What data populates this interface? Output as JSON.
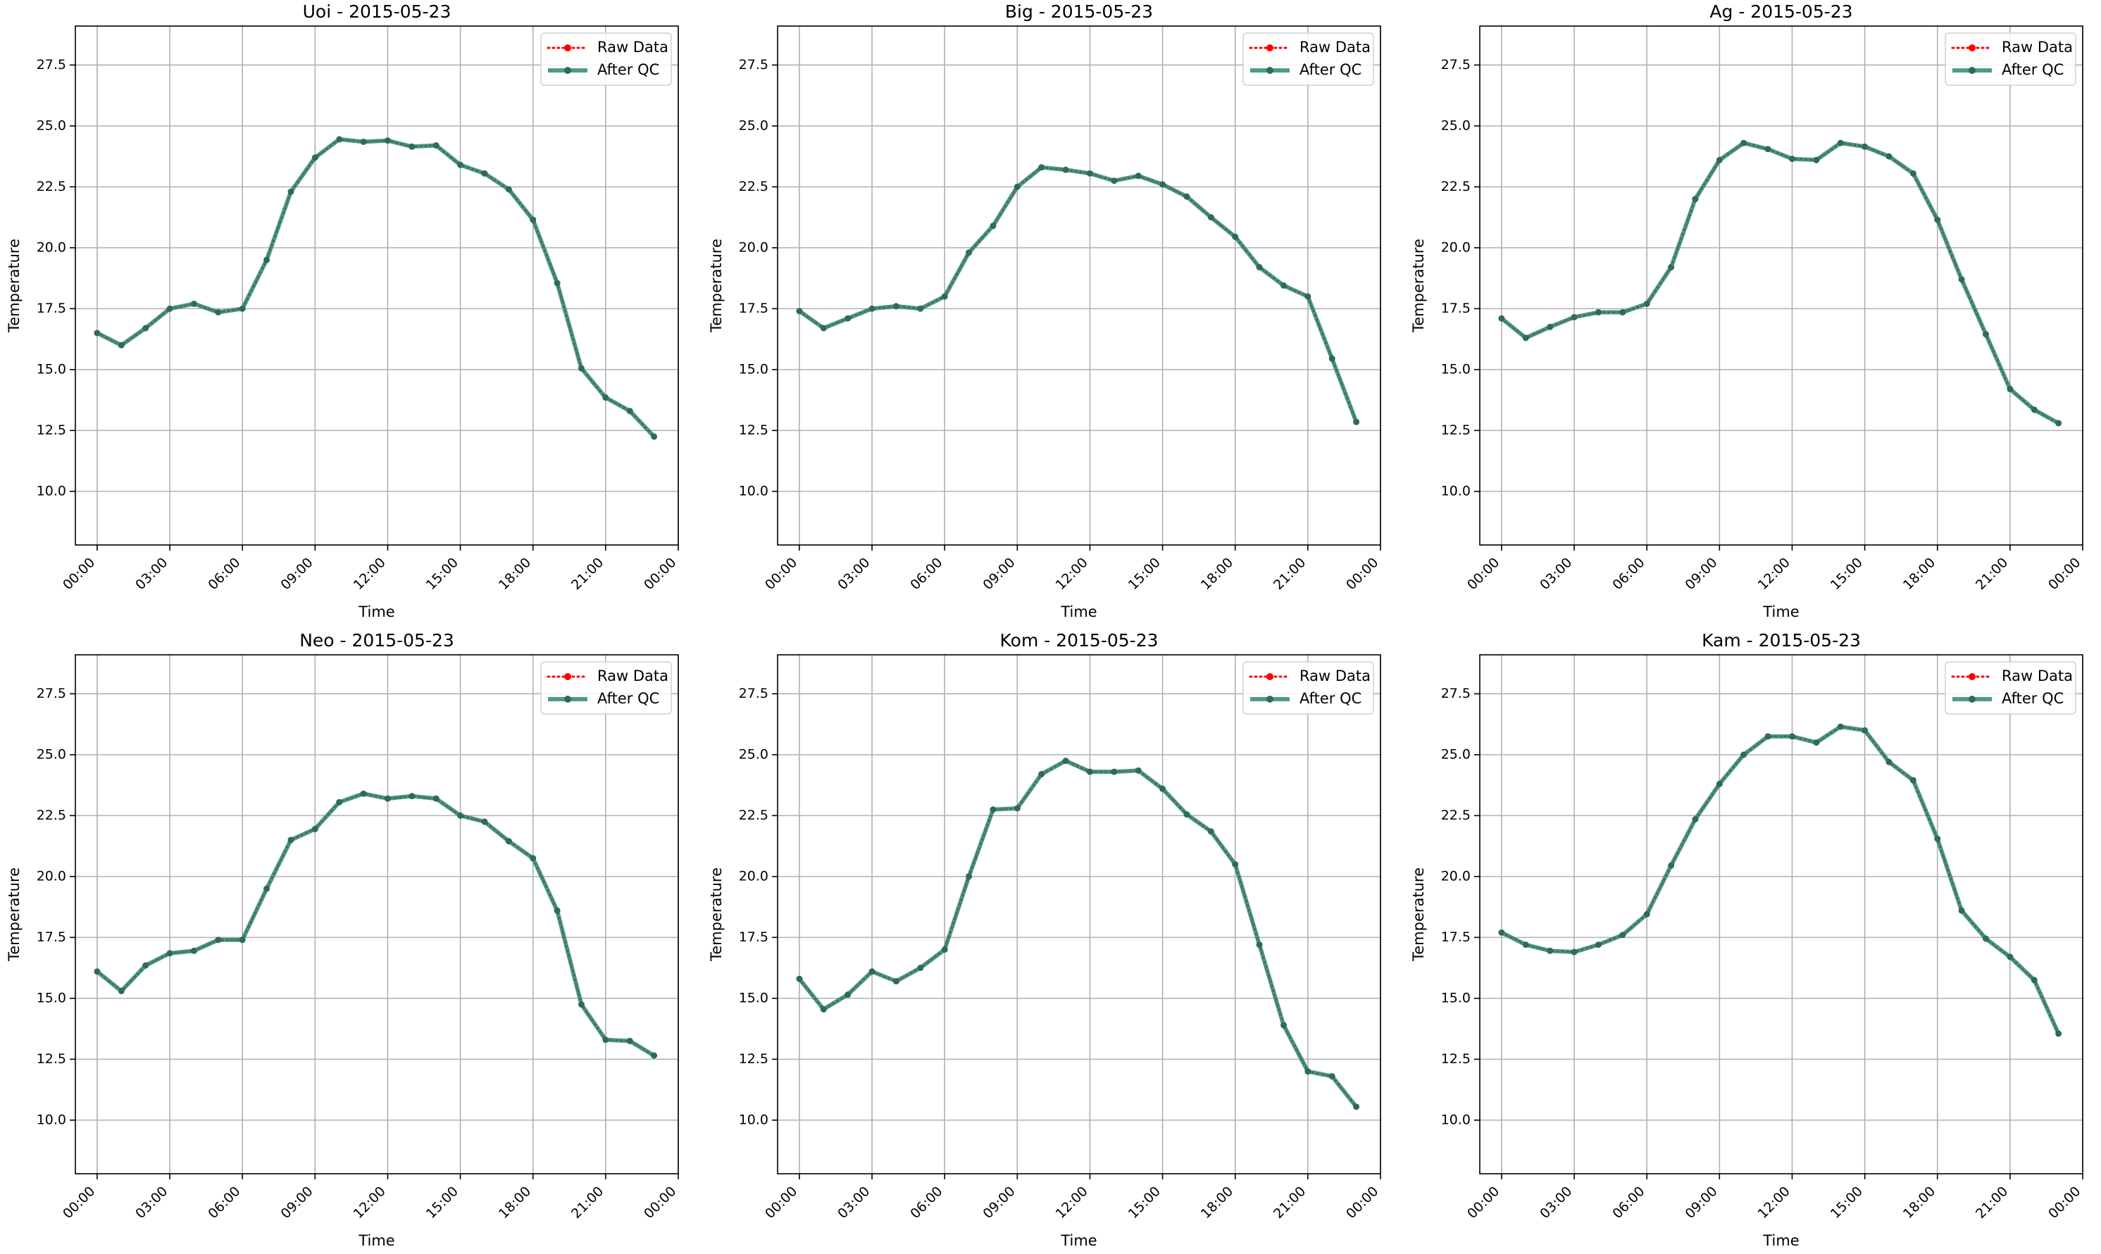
{
  "colors": {
    "raw": "#ff0000",
    "qc": "#2e8b6e",
    "grid": "#b0b0b0",
    "axes": "#000000"
  },
  "chart_data": [
    {
      "type": "line",
      "title": "Uoi - 2015-05-23",
      "xlabel": "Time",
      "ylabel": "Temperature",
      "ylim": [
        7.8,
        29.1
      ],
      "xlim": [
        -0.9,
        24.0
      ],
      "grid": true,
      "legend": "top-right",
      "x_ticks": [
        "00:00",
        "03:00",
        "06:00",
        "09:00",
        "12:00",
        "15:00",
        "18:00",
        "21:00",
        "00:00"
      ],
      "y_ticks": [
        "10.0",
        "12.5",
        "15.0",
        "17.5",
        "20.0",
        "22.5",
        "25.0",
        "27.5"
      ],
      "x": [
        "00:00",
        "01:00",
        "02:00",
        "03:00",
        "04:00",
        "05:00",
        "06:00",
        "07:00",
        "08:00",
        "09:00",
        "10:00",
        "11:00",
        "12:00",
        "13:00",
        "14:00",
        "15:00",
        "16:00",
        "17:00",
        "18:00",
        "19:00",
        "20:00",
        "21:00",
        "22:00",
        "23:00"
      ],
      "series": [
        {
          "name": "Raw Data",
          "values": [
            16.5,
            16.0,
            16.7,
            17.5,
            17.7,
            17.35,
            17.5,
            19.5,
            22.3,
            23.7,
            24.45,
            24.35,
            24.4,
            24.15,
            24.2,
            23.4,
            23.05,
            22.4,
            21.15,
            18.55,
            15.05,
            13.85,
            13.3,
            12.25
          ]
        },
        {
          "name": "After QC",
          "values": [
            16.5,
            16.0,
            16.7,
            17.5,
            17.7,
            17.35,
            17.5,
            19.5,
            22.3,
            23.7,
            24.45,
            24.35,
            24.4,
            24.15,
            24.2,
            23.4,
            23.05,
            22.4,
            21.15,
            18.55,
            15.05,
            13.85,
            13.3,
            12.25
          ]
        }
      ]
    },
    {
      "type": "line",
      "title": "Big - 2015-05-23",
      "xlabel": "Time",
      "ylabel": "Temperature",
      "ylim": [
        7.8,
        29.1
      ],
      "xlim": [
        -0.9,
        24.0
      ],
      "grid": true,
      "legend": "top-right",
      "x_ticks": [
        "00:00",
        "03:00",
        "06:00",
        "09:00",
        "12:00",
        "15:00",
        "18:00",
        "21:00",
        "00:00"
      ],
      "y_ticks": [
        "10.0",
        "12.5",
        "15.0",
        "17.5",
        "20.0",
        "22.5",
        "25.0",
        "27.5"
      ],
      "x": [
        "00:00",
        "01:00",
        "02:00",
        "03:00",
        "04:00",
        "05:00",
        "06:00",
        "07:00",
        "08:00",
        "09:00",
        "10:00",
        "11:00",
        "12:00",
        "13:00",
        "14:00",
        "15:00",
        "16:00",
        "17:00",
        "18:00",
        "19:00",
        "20:00",
        "21:00",
        "22:00",
        "23:00"
      ],
      "series": [
        {
          "name": "Raw Data",
          "values": [
            17.4,
            16.7,
            17.1,
            17.5,
            17.6,
            17.5,
            18.0,
            19.8,
            20.9,
            22.5,
            23.3,
            23.2,
            23.05,
            22.75,
            22.95,
            22.6,
            22.1,
            21.25,
            20.45,
            19.2,
            18.45,
            18.0,
            15.45,
            12.85
          ]
        },
        {
          "name": "After QC",
          "values": [
            17.4,
            16.7,
            17.1,
            17.5,
            17.6,
            17.5,
            18.0,
            19.8,
            20.9,
            22.5,
            23.3,
            23.2,
            23.05,
            22.75,
            22.95,
            22.6,
            22.1,
            21.25,
            20.45,
            19.2,
            18.45,
            18.0,
            15.45,
            12.85
          ]
        }
      ]
    },
    {
      "type": "line",
      "title": "Ag - 2015-05-23",
      "xlabel": "Time",
      "ylabel": "Temperature",
      "ylim": [
        7.8,
        29.1
      ],
      "xlim": [
        -0.9,
        24.0
      ],
      "grid": true,
      "legend": "top-right",
      "x_ticks": [
        "00:00",
        "03:00",
        "06:00",
        "09:00",
        "12:00",
        "15:00",
        "18:00",
        "21:00",
        "00:00"
      ],
      "y_ticks": [
        "10.0",
        "12.5",
        "15.0",
        "17.5",
        "20.0",
        "22.5",
        "25.0",
        "27.5"
      ],
      "x": [
        "00:00",
        "01:00",
        "02:00",
        "03:00",
        "04:00",
        "05:00",
        "06:00",
        "07:00",
        "08:00",
        "09:00",
        "10:00",
        "11:00",
        "12:00",
        "13:00",
        "14:00",
        "15:00",
        "16:00",
        "17:00",
        "18:00",
        "19:00",
        "20:00",
        "21:00",
        "22:00",
        "23:00"
      ],
      "series": [
        {
          "name": "Raw Data",
          "values": [
            17.1,
            16.3,
            16.75,
            17.15,
            17.35,
            17.35,
            17.7,
            19.2,
            22.0,
            23.6,
            24.3,
            24.05,
            23.65,
            23.6,
            24.3,
            24.15,
            23.75,
            23.05,
            21.15,
            18.7,
            16.45,
            14.2,
            13.35,
            12.8
          ]
        },
        {
          "name": "After QC",
          "values": [
            17.1,
            16.3,
            16.75,
            17.15,
            17.35,
            17.35,
            17.7,
            19.2,
            22.0,
            23.6,
            24.3,
            24.05,
            23.65,
            23.6,
            24.3,
            24.15,
            23.75,
            23.05,
            21.15,
            18.7,
            16.45,
            14.2,
            13.35,
            12.8
          ]
        }
      ]
    },
    {
      "type": "line",
      "title": "Neo - 2015-05-23",
      "xlabel": "Time",
      "ylabel": "Temperature",
      "ylim": [
        7.8,
        29.1
      ],
      "xlim": [
        -0.9,
        24.0
      ],
      "grid": true,
      "legend": "top-right",
      "x_ticks": [
        "00:00",
        "03:00",
        "06:00",
        "09:00",
        "12:00",
        "15:00",
        "18:00",
        "21:00",
        "00:00"
      ],
      "y_ticks": [
        "10.0",
        "12.5",
        "15.0",
        "17.5",
        "20.0",
        "22.5",
        "25.0",
        "27.5"
      ],
      "x": [
        "00:00",
        "01:00",
        "02:00",
        "03:00",
        "04:00",
        "05:00",
        "06:00",
        "07:00",
        "08:00",
        "09:00",
        "10:00",
        "11:00",
        "12:00",
        "13:00",
        "14:00",
        "15:00",
        "16:00",
        "17:00",
        "18:00",
        "19:00",
        "20:00",
        "21:00",
        "22:00",
        "23:00"
      ],
      "series": [
        {
          "name": "Raw Data",
          "values": [
            16.1,
            15.3,
            16.35,
            16.85,
            16.95,
            17.4,
            17.4,
            19.5,
            21.5,
            21.95,
            23.05,
            23.4,
            23.2,
            23.3,
            23.2,
            22.5,
            22.25,
            21.45,
            20.75,
            18.6,
            14.75,
            13.3,
            13.25,
            12.65
          ]
        },
        {
          "name": "After QC",
          "values": [
            16.1,
            15.3,
            16.35,
            16.85,
            16.95,
            17.4,
            17.4,
            19.5,
            21.5,
            21.95,
            23.05,
            23.4,
            23.2,
            23.3,
            23.2,
            22.5,
            22.25,
            21.45,
            20.75,
            18.6,
            14.75,
            13.3,
            13.25,
            12.65
          ]
        }
      ]
    },
    {
      "type": "line",
      "title": "Kom - 2015-05-23",
      "xlabel": "Time",
      "ylabel": "Temperature",
      "ylim": [
        7.8,
        29.1
      ],
      "xlim": [
        -0.9,
        24.0
      ],
      "grid": true,
      "legend": "top-right",
      "x_ticks": [
        "00:00",
        "03:00",
        "06:00",
        "09:00",
        "12:00",
        "15:00",
        "18:00",
        "21:00",
        "00:00"
      ],
      "y_ticks": [
        "10.0",
        "12.5",
        "15.0",
        "17.5",
        "20.0",
        "22.5",
        "25.0",
        "27.5"
      ],
      "x": [
        "00:00",
        "01:00",
        "02:00",
        "03:00",
        "04:00",
        "05:00",
        "06:00",
        "07:00",
        "08:00",
        "09:00",
        "10:00",
        "11:00",
        "12:00",
        "13:00",
        "14:00",
        "15:00",
        "16:00",
        "17:00",
        "18:00",
        "19:00",
        "20:00",
        "21:00",
        "22:00",
        "23:00"
      ],
      "series": [
        {
          "name": "Raw Data",
          "values": [
            15.8,
            14.55,
            15.15,
            16.1,
            15.7,
            16.25,
            17.0,
            20.0,
            22.75,
            22.8,
            24.2,
            24.75,
            24.3,
            24.3,
            24.35,
            23.6,
            22.55,
            21.85,
            20.5,
            17.2,
            13.9,
            12.0,
            11.8,
            10.55
          ]
        },
        {
          "name": "After QC",
          "values": [
            15.8,
            14.55,
            15.15,
            16.1,
            15.7,
            16.25,
            17.0,
            20.0,
            22.75,
            22.8,
            24.2,
            24.75,
            24.3,
            24.3,
            24.35,
            23.6,
            22.55,
            21.85,
            20.5,
            17.2,
            13.9,
            12.0,
            11.8,
            10.55
          ]
        }
      ]
    },
    {
      "type": "line",
      "title": "Kam - 2015-05-23",
      "xlabel": "Time",
      "ylabel": "Temperature",
      "ylim": [
        7.8,
        29.1
      ],
      "xlim": [
        -0.9,
        24.0
      ],
      "grid": true,
      "legend": "top-right",
      "x_ticks": [
        "00:00",
        "03:00",
        "06:00",
        "09:00",
        "12:00",
        "15:00",
        "18:00",
        "21:00",
        "00:00"
      ],
      "y_ticks": [
        "10.0",
        "12.5",
        "15.0",
        "17.5",
        "20.0",
        "22.5",
        "25.0",
        "27.5"
      ],
      "x": [
        "00:00",
        "01:00",
        "02:00",
        "03:00",
        "04:00",
        "05:00",
        "06:00",
        "07:00",
        "08:00",
        "09:00",
        "10:00",
        "11:00",
        "12:00",
        "13:00",
        "14:00",
        "15:00",
        "16:00",
        "17:00",
        "18:00",
        "19:00",
        "20:00",
        "21:00",
        "22:00",
        "23:00"
      ],
      "series": [
        {
          "name": "Raw Data",
          "values": [
            17.7,
            17.2,
            16.95,
            16.9,
            17.2,
            17.6,
            18.45,
            20.45,
            22.35,
            23.8,
            25.0,
            25.75,
            25.75,
            25.5,
            26.15,
            26.0,
            24.7,
            23.95,
            21.55,
            18.6,
            17.45,
            16.7,
            15.75,
            13.55
          ]
        },
        {
          "name": "After QC",
          "values": [
            17.7,
            17.2,
            16.95,
            16.9,
            17.2,
            17.6,
            18.45,
            20.45,
            22.35,
            23.8,
            25.0,
            25.75,
            25.75,
            25.5,
            26.15,
            26.0,
            24.7,
            23.95,
            21.55,
            18.6,
            17.45,
            16.7,
            15.75,
            13.55
          ]
        }
      ]
    }
  ]
}
